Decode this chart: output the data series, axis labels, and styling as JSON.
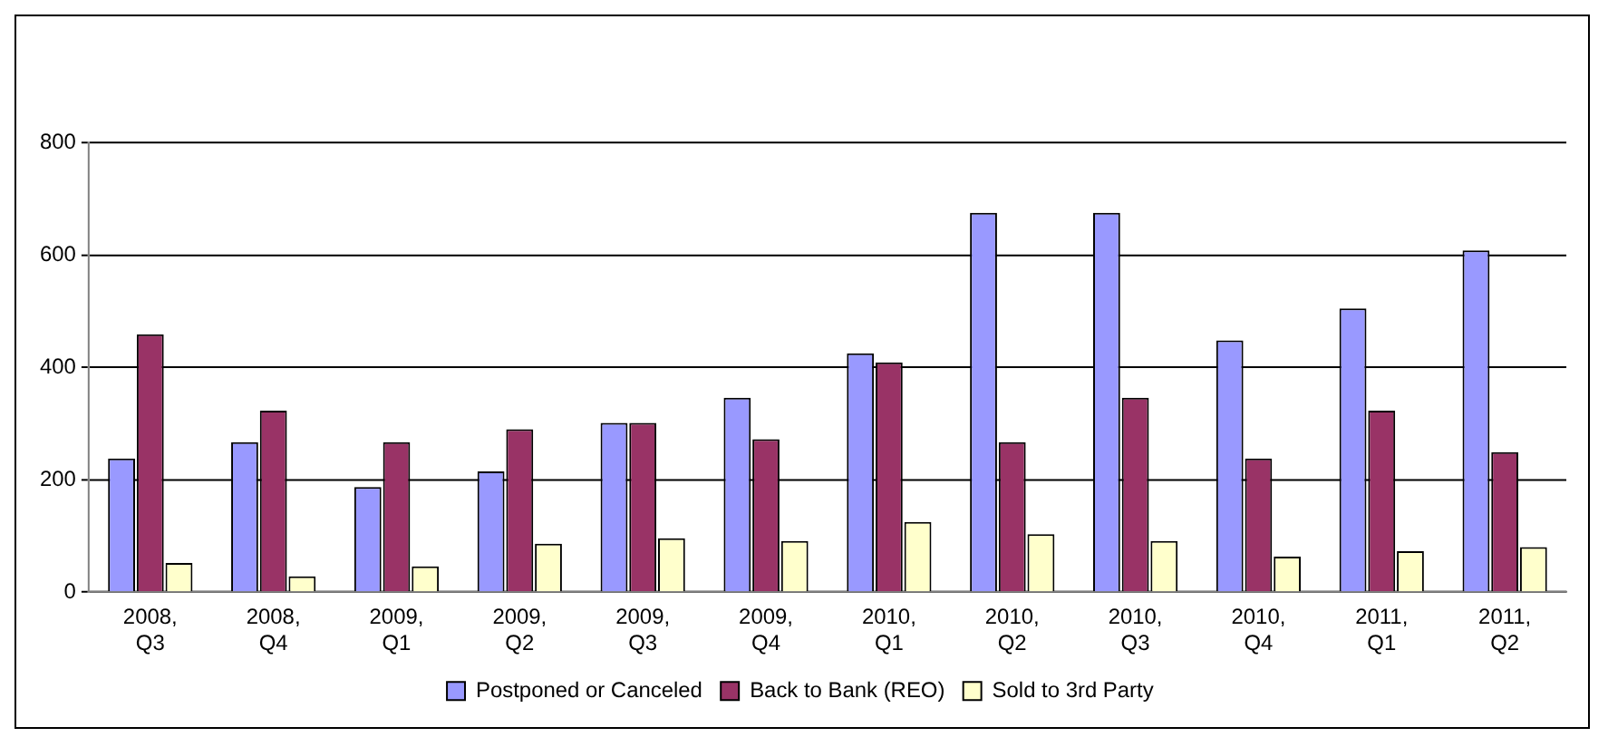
{
  "chart_data": {
    "type": "bar",
    "categories": [
      "2008, Q3",
      "2008, Q4",
      "2009, Q1",
      "2009, Q2",
      "2009, Q3",
      "2009, Q4",
      "2010, Q1",
      "2010, Q2",
      "2010, Q3",
      "2010, Q4",
      "2011, Q1",
      "2011, Q2"
    ],
    "series": [
      {
        "name": "Postponed or Canceled",
        "color": "#9999ff",
        "values": [
          238,
          267,
          187,
          215,
          301,
          346,
          425,
          675,
          675,
          448,
          505,
          608
        ]
      },
      {
        "name": "Back to Bank (REO)",
        "color": "#993366",
        "values": [
          459,
          323,
          267,
          290,
          301,
          272,
          409,
          267,
          346,
          238,
          323,
          249
        ]
      },
      {
        "name": "Sold to 3rd Party",
        "color": "#ffffcc",
        "values": [
          52,
          28,
          46,
          86,
          96,
          91,
          125,
          103,
          91,
          63,
          73,
          80
        ]
      }
    ],
    "ylim": [
      0,
      800
    ],
    "yticks": [
      0,
      200,
      400,
      600,
      800
    ],
    "grid": "y",
    "legend": "bottom"
  }
}
